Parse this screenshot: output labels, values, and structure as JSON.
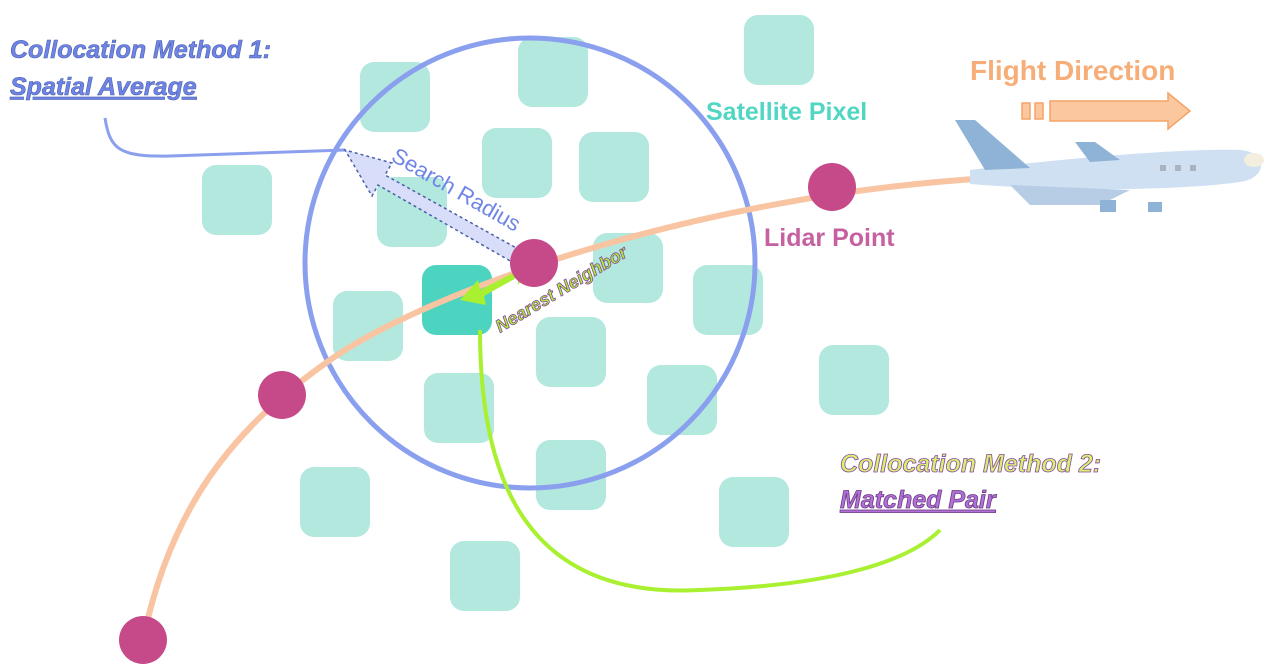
{
  "method1": {
    "title": "Collocation Method 1:",
    "subtitle": "Spatial Average"
  },
  "method2": {
    "title": "Collocation Method 2:",
    "subtitle": "Matched Pair"
  },
  "labels": {
    "satellite_pixel": "Satellite Pixel",
    "flight_direction": "Flight Direction",
    "lidar_point": "Lidar Point",
    "search_radius": "Search Radius",
    "nearest_neighbor": "Nearest Neighbor"
  }
}
